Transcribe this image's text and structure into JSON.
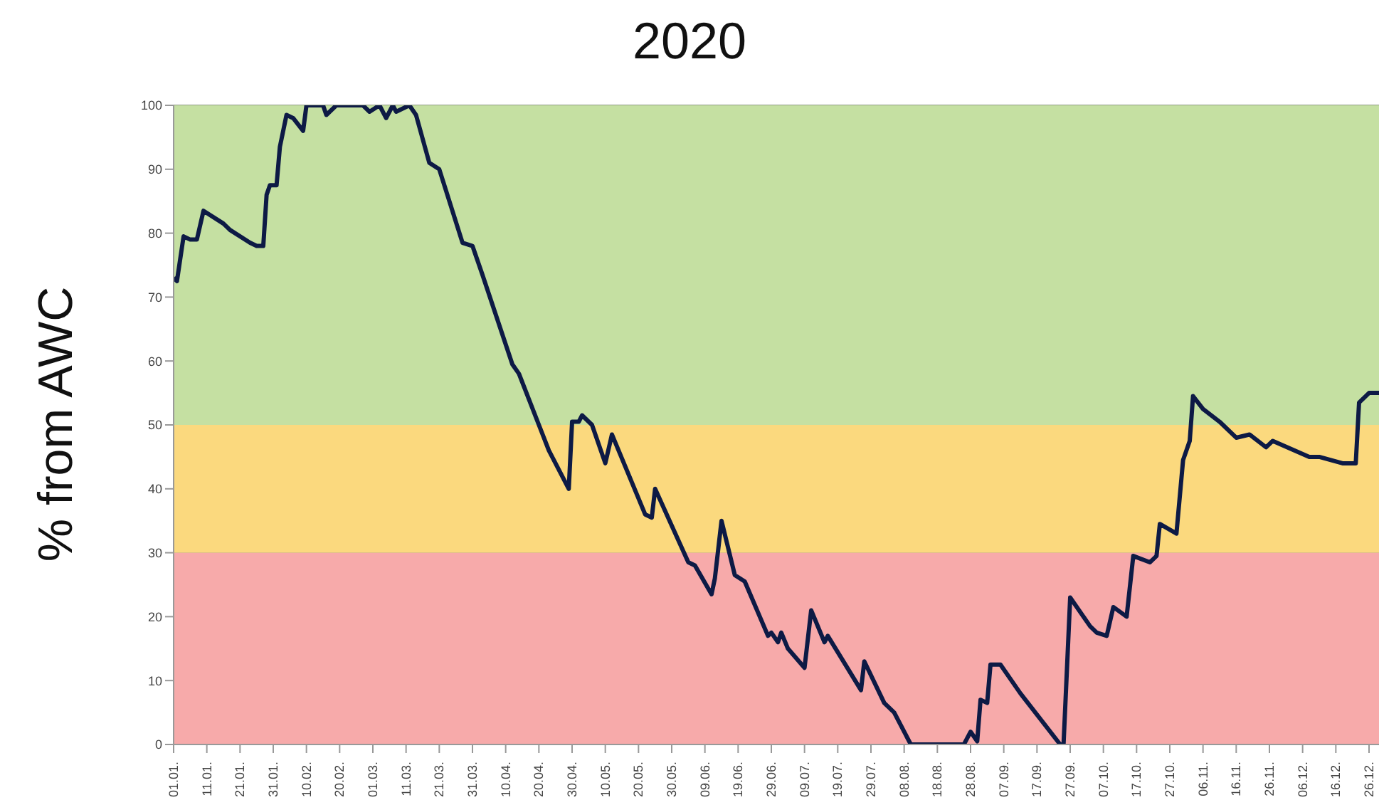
{
  "chart_data": {
    "type": "line",
    "title": "2020",
    "ylabel": "% from AWC",
    "x": [
      "2020-01-01",
      "2020-01-02",
      "2020-01-04",
      "2020-01-06",
      "2020-01-08",
      "2020-01-10",
      "2020-01-16",
      "2020-01-18",
      "2020-01-24",
      "2020-01-26",
      "2020-01-28",
      "2020-01-29",
      "2020-01-30",
      "2020-02-01",
      "2020-02-02",
      "2020-02-04",
      "2020-02-06",
      "2020-02-09",
      "2020-02-10",
      "2020-02-15",
      "2020-02-16",
      "2020-02-17",
      "2020-02-19",
      "2020-02-27",
      "2020-02-29",
      "2020-03-03",
      "2020-03-05",
      "2020-03-07",
      "2020-03-08",
      "2020-03-12",
      "2020-03-14",
      "2020-03-18",
      "2020-03-21",
      "2020-03-28",
      "2020-03-31",
      "2020-04-03",
      "2020-04-12",
      "2020-04-14",
      "2020-04-20",
      "2020-04-23",
      "2020-04-29",
      "2020-04-30",
      "2020-05-02",
      "2020-05-03",
      "2020-05-06",
      "2020-05-10",
      "2020-05-12",
      "2020-05-22",
      "2020-05-24",
      "2020-05-25",
      "2020-06-04",
      "2020-06-06",
      "2020-06-11",
      "2020-06-12",
      "2020-06-14",
      "2020-06-18",
      "2020-06-21",
      "2020-06-28",
      "2020-06-29",
      "2020-07-01",
      "2020-07-02",
      "2020-07-04",
      "2020-07-09",
      "2020-07-11",
      "2020-07-15",
      "2020-07-16",
      "2020-07-26",
      "2020-07-27",
      "2020-08-02",
      "2020-08-05",
      "2020-08-10",
      "2020-08-26",
      "2020-08-28",
      "2020-08-30",
      "2020-08-31",
      "2020-09-02",
      "2020-09-03",
      "2020-09-06",
      "2020-09-12",
      "2020-09-24",
      "2020-09-25",
      "2020-09-27",
      "2020-10-03",
      "2020-10-05",
      "2020-10-08",
      "2020-10-10",
      "2020-10-14",
      "2020-10-16",
      "2020-10-21",
      "2020-10-23",
      "2020-10-24",
      "2020-10-29",
      "2020-10-31",
      "2020-11-02",
      "2020-11-03",
      "2020-11-06",
      "2020-11-11",
      "2020-11-16",
      "2020-11-20",
      "2020-11-25",
      "2020-11-27",
      "2020-12-08",
      "2020-12-11",
      "2020-12-18",
      "2020-12-22",
      "2020-12-23",
      "2020-12-26",
      "2020-12-29"
    ],
    "series": [
      {
        "color": "#0d1a45",
        "values": [
          73,
          72.5,
          79.5,
          79,
          79,
          83.5,
          81.5,
          80.5,
          78.5,
          78,
          78,
          86,
          87.5,
          87.5,
          93.5,
          98.5,
          98,
          96,
          100,
          100,
          98.5,
          99,
          100,
          100,
          99,
          100,
          98,
          100,
          99,
          100,
          98.5,
          91,
          90,
          78.5,
          78,
          73.5,
          59.5,
          58,
          50,
          46,
          40,
          50.5,
          50.5,
          51.5,
          50,
          44,
          48.5,
          36,
          35.5,
          40,
          28.5,
          28,
          23.5,
          26,
          35,
          26.5,
          25.5,
          17,
          17.5,
          16,
          17.5,
          15,
          12,
          21,
          16,
          17,
          8.5,
          13,
          6.5,
          5,
          0,
          0,
          2,
          0.5,
          7,
          6.5,
          12.5,
          12.5,
          8,
          0,
          0,
          23,
          18.5,
          17.5,
          17,
          21.5,
          20,
          29.5,
          28.5,
          29.5,
          34.5,
          33,
          44.5,
          47.5,
          54.5,
          52.5,
          50.5,
          48,
          48.5,
          46.5,
          47.5,
          45,
          45,
          44,
          44,
          53.5,
          55,
          55
        ]
      }
    ],
    "xlim": [
      "2020-01-01",
      "2020-12-29"
    ],
    "xticks": [
      {
        "value": "2020-01-01",
        "label": "01.01."
      },
      {
        "value": "2020-01-11",
        "label": "11.01."
      },
      {
        "value": "2020-01-21",
        "label": "21.01."
      },
      {
        "value": "2020-01-31",
        "label": "31.01."
      },
      {
        "value": "2020-02-10",
        "label": "10.02."
      },
      {
        "value": "2020-02-20",
        "label": "20.02."
      },
      {
        "value": "2020-03-01",
        "label": "01.03."
      },
      {
        "value": "2020-03-11",
        "label": "11.03."
      },
      {
        "value": "2020-03-21",
        "label": "21.03."
      },
      {
        "value": "2020-03-31",
        "label": "31.03."
      },
      {
        "value": "2020-04-10",
        "label": "10.04."
      },
      {
        "value": "2020-04-20",
        "label": "20.04."
      },
      {
        "value": "2020-04-30",
        "label": "30.04."
      },
      {
        "value": "2020-05-10",
        "label": "10.05."
      },
      {
        "value": "2020-05-20",
        "label": "20.05."
      },
      {
        "value": "2020-05-30",
        "label": "30.05."
      },
      {
        "value": "2020-06-09",
        "label": "09.06."
      },
      {
        "value": "2020-06-19",
        "label": "19.06."
      },
      {
        "value": "2020-06-29",
        "label": "29.06."
      },
      {
        "value": "2020-07-09",
        "label": "09.07."
      },
      {
        "value": "2020-07-19",
        "label": "19.07."
      },
      {
        "value": "2020-07-29",
        "label": "29.07."
      },
      {
        "value": "2020-08-08",
        "label": "08.08."
      },
      {
        "value": "2020-08-18",
        "label": "18.08."
      },
      {
        "value": "2020-08-28",
        "label": "28.08."
      },
      {
        "value": "2020-09-07",
        "label": "07.09."
      },
      {
        "value": "2020-09-17",
        "label": "17.09."
      },
      {
        "value": "2020-09-27",
        "label": "27.09."
      },
      {
        "value": "2020-10-07",
        "label": "07.10."
      },
      {
        "value": "2020-10-17",
        "label": "17.10."
      },
      {
        "value": "2020-10-27",
        "label": "27.10."
      },
      {
        "value": "2020-11-06",
        "label": "06.11."
      },
      {
        "value": "2020-11-16",
        "label": "16.11."
      },
      {
        "value": "2020-11-26",
        "label": "26.11."
      },
      {
        "value": "2020-12-06",
        "label": "06.12."
      },
      {
        "value": "2020-12-16",
        "label": "16.12."
      },
      {
        "value": "2020-12-26",
        "label": "26.12."
      }
    ],
    "ylim": [
      0,
      100
    ],
    "yticks": [
      0,
      10,
      20,
      30,
      40,
      50,
      60,
      70,
      80,
      90,
      100
    ],
    "bands": [
      {
        "axis": "y",
        "from": 0,
        "to": 30,
        "color": "#f7aaaa"
      },
      {
        "axis": "y",
        "from": 30,
        "to": 50,
        "color": "#fbd97e"
      },
      {
        "axis": "y",
        "from": 50,
        "to": 100,
        "color": "#c5e0a2"
      }
    ],
    "grid": "y"
  }
}
